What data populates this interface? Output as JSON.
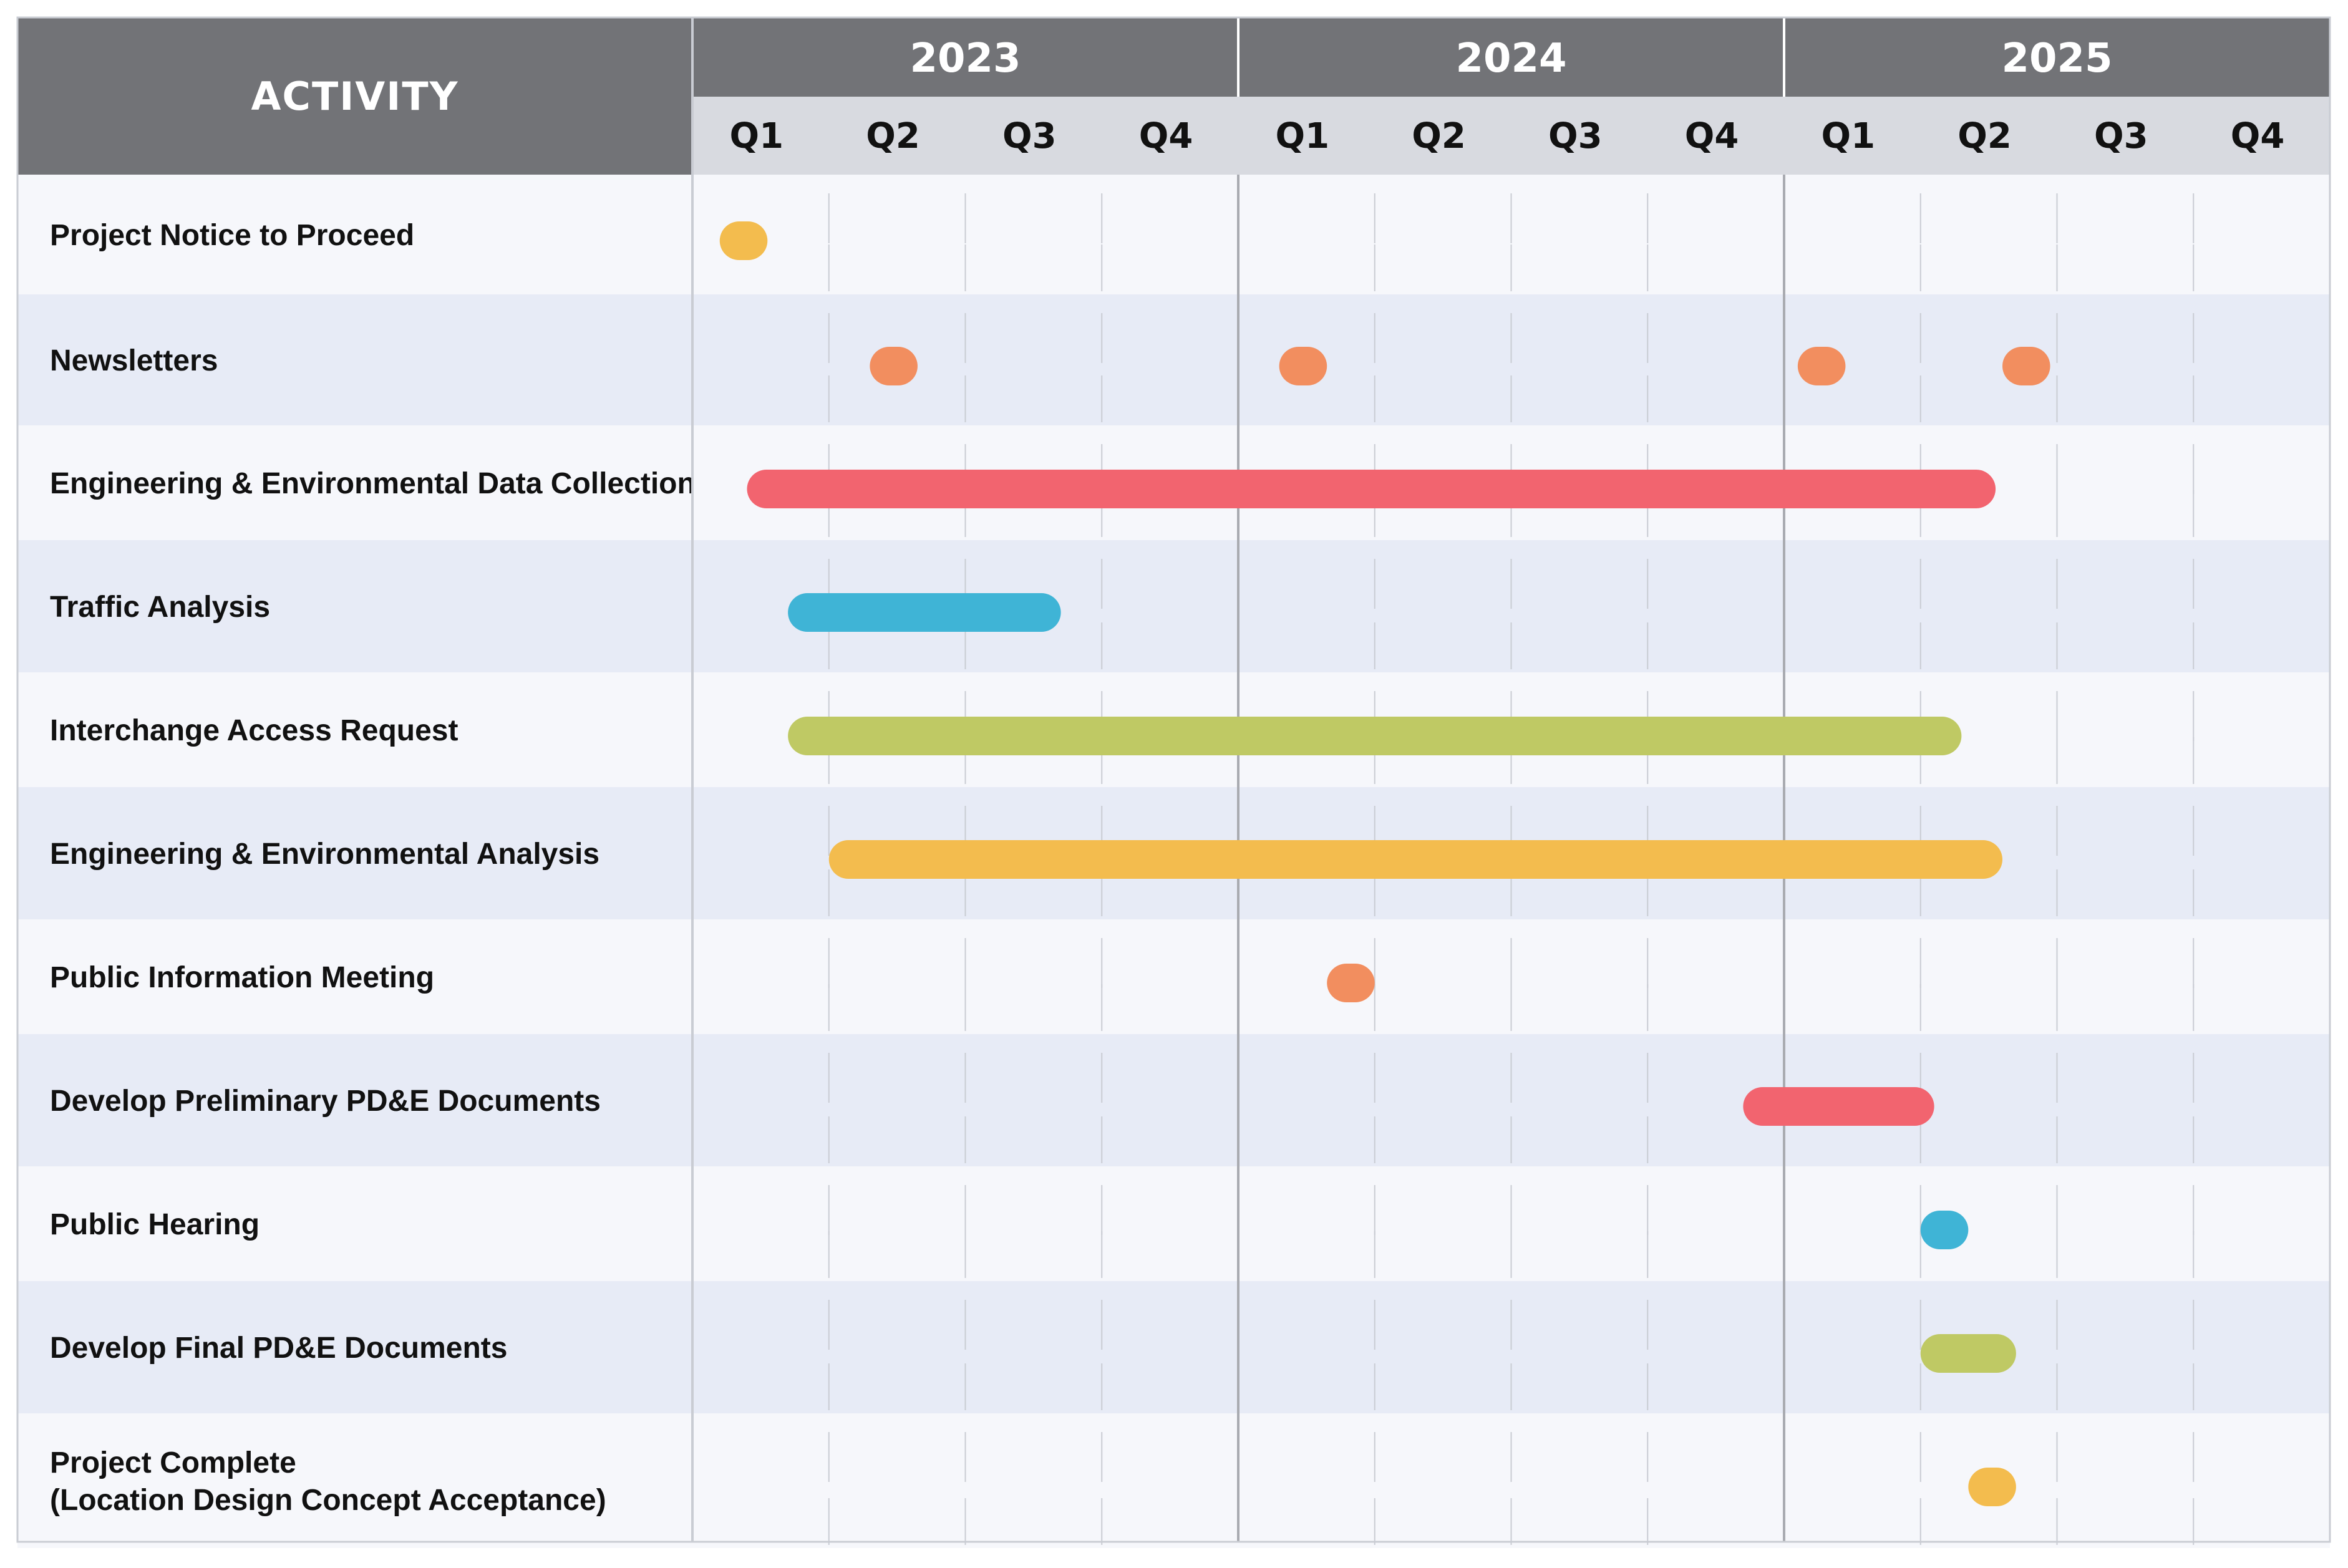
{
  "chart_data": {
    "type": "gantt",
    "header": "ACTIVITY",
    "years": [
      "2023",
      "2024",
      "2025"
    ],
    "quarters": [
      "Q1",
      "Q2",
      "Q3",
      "Q4"
    ],
    "x_unit": "quarters from start of 2023",
    "xlim": [
      0,
      12
    ],
    "grid": true,
    "tasks": [
      {
        "label": "Project Notice to Proceed",
        "color": "#F3BC4E",
        "segments": [
          [
            0.2,
            0.55
          ]
        ]
      },
      {
        "label": "Newsletters",
        "color": "#F28E5F",
        "segments": [
          [
            1.3,
            1.65
          ],
          [
            4.3,
            4.65
          ],
          [
            8.1,
            8.45
          ],
          [
            9.6,
            9.95
          ]
        ]
      },
      {
        "label": "Engineering & Environmental Data Collection",
        "color": "#F2646F",
        "segments": [
          [
            0.4,
            9.55
          ]
        ]
      },
      {
        "label": "Traffic Analysis",
        "color": "#3FB4D6",
        "segments": [
          [
            0.7,
            2.7
          ]
        ]
      },
      {
        "label": "Interchange Access Request",
        "color": "#BFC964",
        "segments": [
          [
            0.7,
            9.3
          ]
        ]
      },
      {
        "label": "Engineering & Environmental Analysis",
        "color": "#F3BC4E",
        "segments": [
          [
            1.0,
            9.6
          ]
        ]
      },
      {
        "label": "Public Information Meeting",
        "color": "#F28E5F",
        "segments": [
          [
            4.65,
            5.0
          ]
        ]
      },
      {
        "label": "Develop Preliminary PD&E Documents",
        "color": "#F2646F",
        "segments": [
          [
            7.7,
            9.1
          ]
        ]
      },
      {
        "label": "Public Hearing",
        "color": "#3FB4D6",
        "segments": [
          [
            9.0,
            9.35
          ]
        ]
      },
      {
        "label": "Develop Final PD&E Documents",
        "color": "#BFC964",
        "segments": [
          [
            9.0,
            9.7
          ]
        ]
      },
      {
        "label": "Project Complete\n(Location Design Concept Acceptance)",
        "color": "#F3BC4E",
        "segments": [
          [
            9.35,
            9.7
          ]
        ]
      }
    ]
  },
  "colors": {
    "header_dark": "#727377",
    "header_light": "#D8DAE0",
    "row_light": "#F6F7FB",
    "row_alt": "#E7EBF6",
    "grid_line": "#C9CCD3",
    "year_line": "#A9ABB1"
  }
}
